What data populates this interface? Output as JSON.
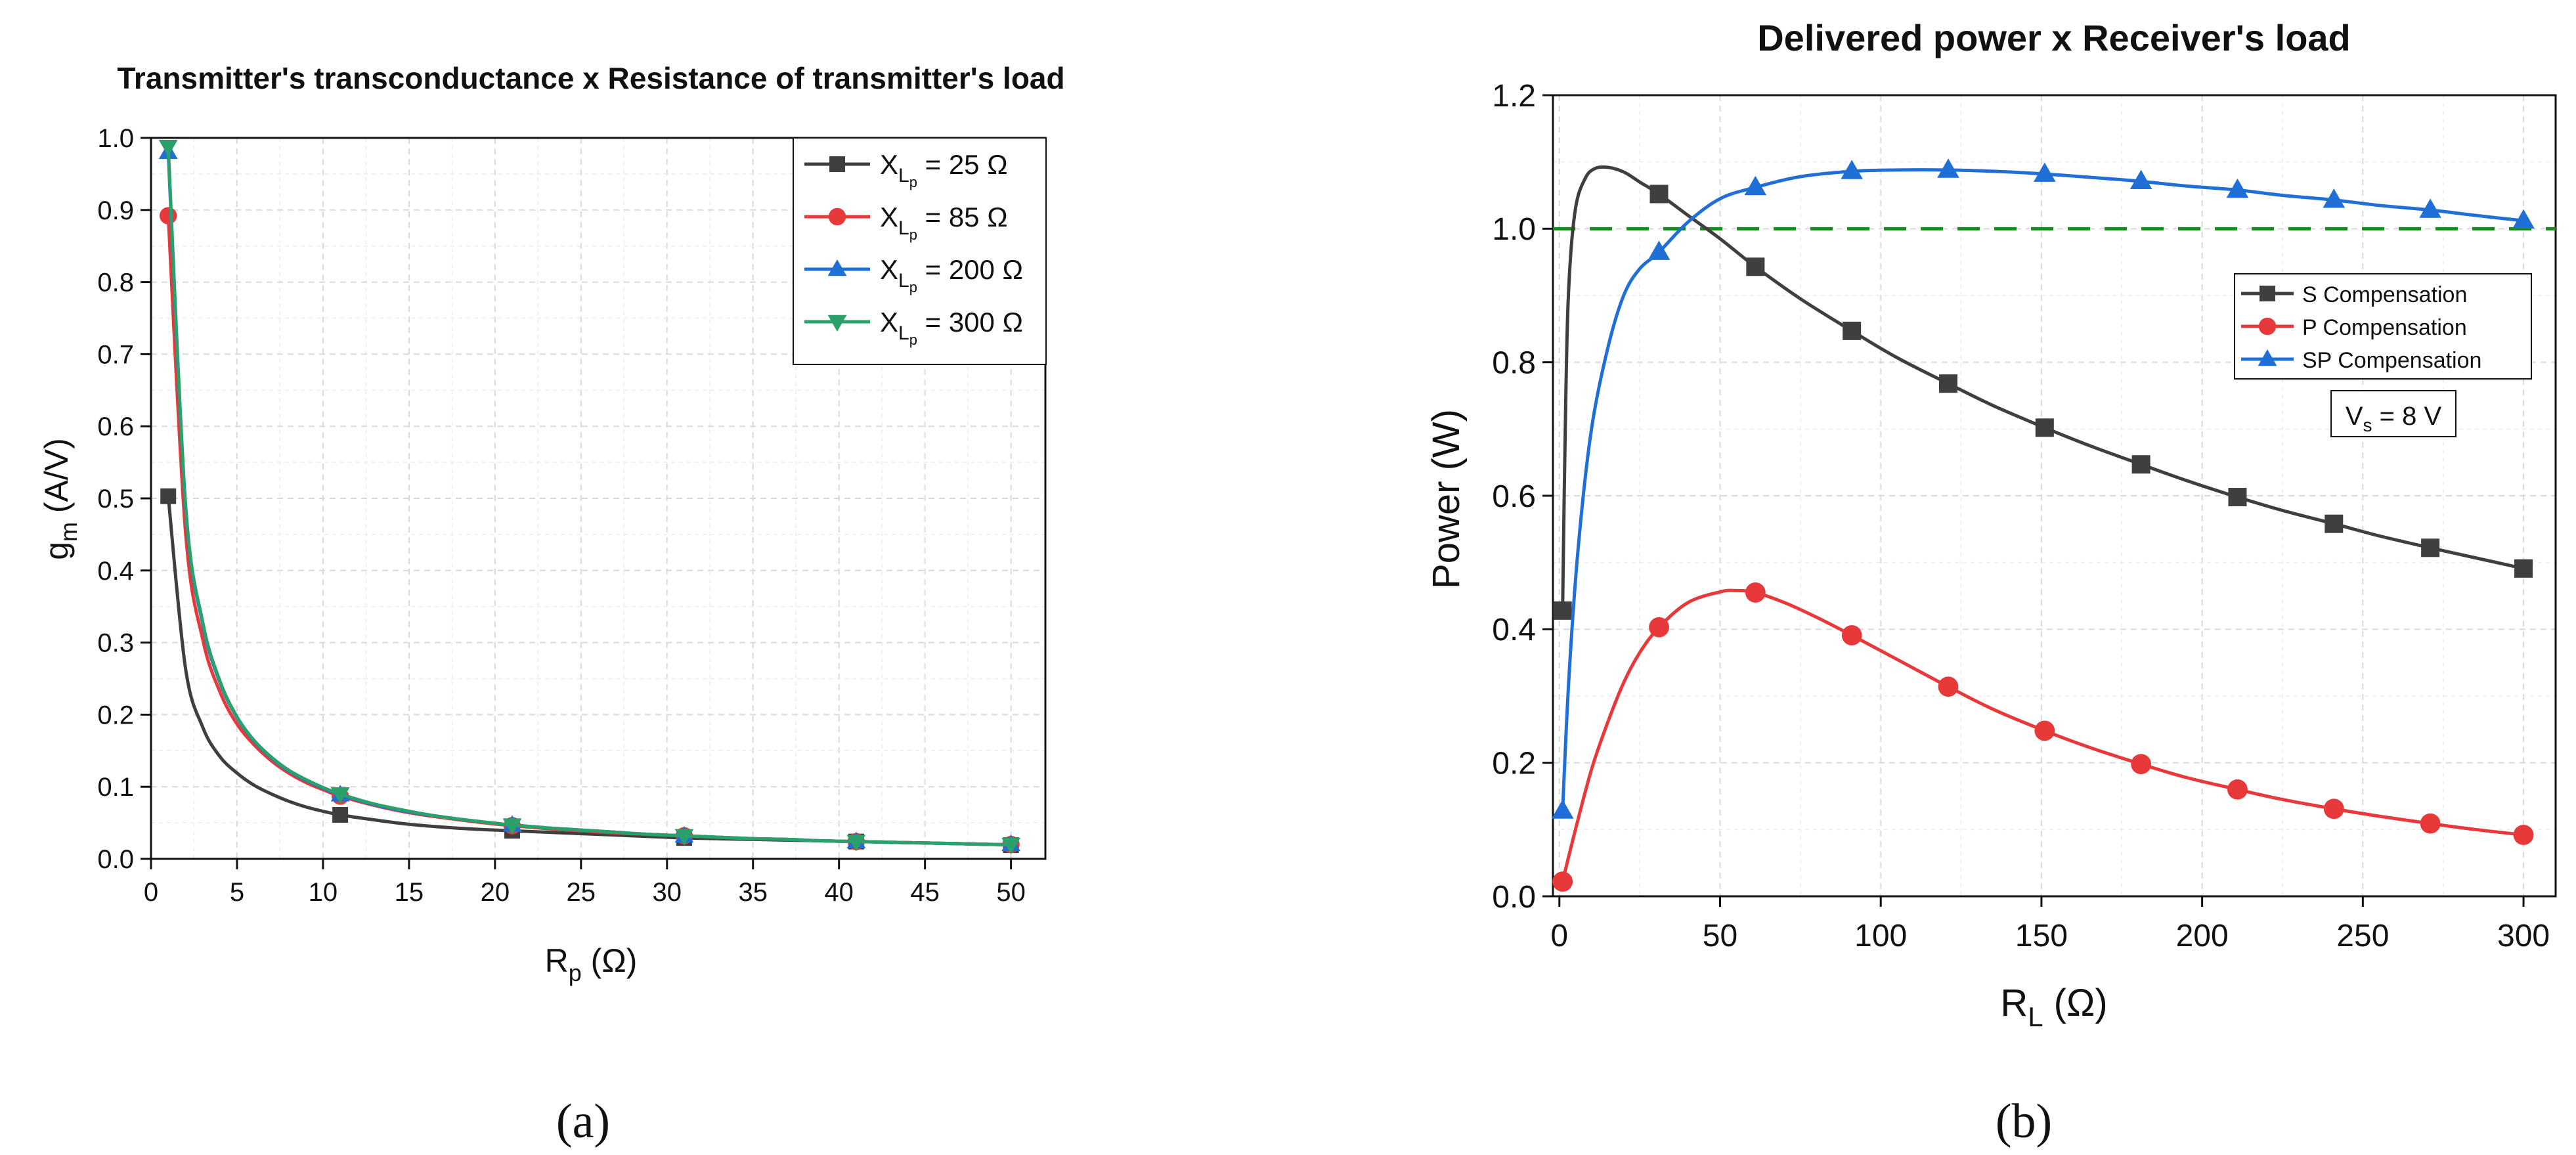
{
  "colors": {
    "series_black": "#3f3f3f",
    "series_red": "#e8393a",
    "series_blue": "#1f6fd6",
    "series_green": "#2aa06a",
    "reference_line": "#1a8a1a",
    "grid": "#d9d9d9",
    "axis": "#111111"
  },
  "chart_data": [
    {
      "panel": "a",
      "panel_label": "(a)",
      "type": "line",
      "title": "Transmitter's transconductance x Resistance of transmitter's load",
      "xlabel": {
        "main": "R",
        "sub": "p",
        "unit": " (Ω)"
      },
      "ylabel": {
        "main": "g",
        "sub": "m",
        "unit": " (A/V)"
      },
      "xlim": [
        0,
        52
      ],
      "ylim": [
        0,
        1.0
      ],
      "xticks": [
        0,
        5,
        10,
        15,
        20,
        25,
        30,
        35,
        40,
        45,
        50
      ],
      "yticks": [
        0.0,
        0.1,
        0.2,
        0.3,
        0.4,
        0.5,
        0.6,
        0.7,
        0.8,
        0.9,
        1.0
      ],
      "grid": true,
      "legend_position": "top-right",
      "series": [
        {
          "name": "X",
          "sub": "L",
          "subsub": "p",
          "value": " = 25 Ω",
          "color_key": "series_black",
          "marker": "square",
          "x": [
            1,
            2,
            3,
            4,
            5,
            6,
            7,
            8,
            9,
            10,
            11,
            13,
            15,
            17,
            19,
            21,
            23,
            25,
            27,
            29,
            31,
            33,
            35,
            37,
            39,
            41,
            43,
            45,
            47,
            49,
            50
          ],
          "y": [
            0.503,
            0.265,
            0.183,
            0.142,
            0.119,
            0.102,
            0.09,
            0.08,
            0.072,
            0.066,
            0.061,
            0.054,
            0.048,
            0.044,
            0.041,
            0.039,
            0.037,
            0.035,
            0.033,
            0.031,
            0.029,
            0.028,
            0.027,
            0.026,
            0.025,
            0.024,
            0.023,
            0.022,
            0.021,
            0.02,
            0.019
          ],
          "marker_x": [
            1,
            11,
            21,
            31,
            41,
            50
          ]
        },
        {
          "name": "X",
          "sub": "L",
          "subsub": "p",
          "value": " = 85 Ω",
          "color_key": "series_red",
          "marker": "circle",
          "x": [
            1,
            2,
            3,
            4,
            5,
            6,
            7,
            8,
            9,
            10,
            11,
            13,
            15,
            17,
            19,
            21,
            23,
            25,
            27,
            29,
            31,
            33,
            35,
            37,
            39,
            41,
            43,
            45,
            47,
            49,
            50
          ],
          "y": [
            0.892,
            0.455,
            0.305,
            0.232,
            0.187,
            0.158,
            0.136,
            0.119,
            0.106,
            0.096,
            0.087,
            0.074,
            0.064,
            0.057,
            0.051,
            0.046,
            0.042,
            0.039,
            0.036,
            0.034,
            0.032,
            0.03,
            0.028,
            0.027,
            0.025,
            0.024,
            0.023,
            0.022,
            0.021,
            0.02,
            0.02
          ],
          "marker_x": [
            1,
            11,
            21,
            31,
            41,
            50
          ]
        },
        {
          "name": "X",
          "sub": "L",
          "subsub": "p",
          "value": " = 200 Ω",
          "color_key": "series_blue",
          "marker": "triangle-up",
          "x": [
            1,
            2,
            3,
            4,
            5,
            6,
            7,
            8,
            9,
            10,
            11,
            13,
            15,
            17,
            19,
            21,
            23,
            25,
            27,
            29,
            31,
            33,
            35,
            37,
            39,
            41,
            43,
            45,
            47,
            49,
            50
          ],
          "y": [
            0.98,
            0.49,
            0.326,
            0.245,
            0.196,
            0.163,
            0.14,
            0.122,
            0.109,
            0.098,
            0.089,
            0.075,
            0.065,
            0.058,
            0.052,
            0.047,
            0.043,
            0.04,
            0.037,
            0.034,
            0.032,
            0.03,
            0.028,
            0.027,
            0.025,
            0.024,
            0.023,
            0.022,
            0.021,
            0.02,
            0.02
          ],
          "marker_x": [
            1,
            11,
            21,
            31,
            41,
            50
          ]
        },
        {
          "name": "X",
          "sub": "L",
          "subsub": "p",
          "value": " = 300 Ω",
          "color_key": "series_green",
          "marker": "triangle-down",
          "x": [
            1,
            2,
            3,
            4,
            5,
            6,
            7,
            8,
            9,
            10,
            11,
            13,
            15,
            17,
            19,
            21,
            23,
            25,
            27,
            29,
            31,
            33,
            35,
            37,
            39,
            41,
            43,
            45,
            47,
            49,
            50
          ],
          "y": [
            0.988,
            0.494,
            0.329,
            0.247,
            0.197,
            0.164,
            0.141,
            0.123,
            0.11,
            0.099,
            0.09,
            0.076,
            0.066,
            0.058,
            0.052,
            0.047,
            0.043,
            0.04,
            0.037,
            0.034,
            0.032,
            0.03,
            0.028,
            0.027,
            0.025,
            0.024,
            0.023,
            0.022,
            0.021,
            0.02,
            0.02
          ],
          "marker_x": [
            1,
            11,
            21,
            31,
            41,
            50
          ]
        }
      ]
    },
    {
      "panel": "b",
      "panel_label": "(b)",
      "type": "line",
      "title": "Delivered power x Receiver's load",
      "xlabel": {
        "main": "R",
        "sub": "L",
        "unit": " (Ω)"
      },
      "ylabel": {
        "main": "Power (W)"
      },
      "xlim": [
        -2,
        310
      ],
      "ylim": [
        0,
        1.2
      ],
      "xticks": [
        0,
        50,
        100,
        150,
        200,
        250,
        300
      ],
      "yticks": [
        0.0,
        0.2,
        0.4,
        0.6,
        0.8,
        1.0,
        1.2
      ],
      "grid": true,
      "legend_position": "center-right",
      "reference_line": {
        "y": 1.0,
        "style": "dashed",
        "color_key": "reference_line"
      },
      "annotation": {
        "main": "V",
        "sub": "s",
        "value": " = 8 V"
      },
      "series": [
        {
          "name": "S Compensation",
          "color_key": "series_black",
          "marker": "square",
          "x": [
            1,
            2,
            3,
            5,
            8,
            11,
            15,
            20,
            25,
            31,
            40,
            50,
            61,
            75,
            91,
            105,
            121,
            135,
            151,
            165,
            181,
            195,
            211,
            225,
            241,
            255,
            271,
            285,
            300
          ],
          "y": [
            0.428,
            0.75,
            0.92,
            1.03,
            1.075,
            1.09,
            1.092,
            1.085,
            1.07,
            1.052,
            1.02,
            0.985,
            0.943,
            0.895,
            0.847,
            0.807,
            0.768,
            0.735,
            0.702,
            0.675,
            0.647,
            0.623,
            0.598,
            0.578,
            0.558,
            0.54,
            0.522,
            0.507,
            0.491
          ],
          "marker_x": [
            1,
            31,
            61,
            91,
            121,
            151,
            181,
            211,
            241,
            271,
            300
          ]
        },
        {
          "name": "P Compensation",
          "color_key": "series_red",
          "marker": "circle",
          "x": [
            1,
            5,
            10,
            15,
            20,
            25,
            31,
            40,
            50,
            55,
            61,
            70,
            80,
            91,
            105,
            121,
            135,
            151,
            165,
            181,
            195,
            211,
            225,
            241,
            255,
            271,
            285,
            300
          ],
          "y": [
            0.022,
            0.1,
            0.19,
            0.26,
            0.32,
            0.365,
            0.403,
            0.44,
            0.456,
            0.458,
            0.455,
            0.44,
            0.418,
            0.391,
            0.355,
            0.314,
            0.28,
            0.248,
            0.223,
            0.198,
            0.178,
            0.16,
            0.145,
            0.131,
            0.12,
            0.109,
            0.1,
            0.092
          ],
          "marker_x": [
            1,
            31,
            61,
            91,
            121,
            151,
            181,
            211,
            241,
            271,
            300
          ]
        },
        {
          "name": "SP Compensation",
          "color_key": "series_blue",
          "marker": "triangle-up",
          "x": [
            1,
            3,
            6,
            10,
            15,
            20,
            25,
            31,
            40,
            50,
            61,
            75,
            91,
            105,
            121,
            135,
            151,
            165,
            181,
            195,
            211,
            225,
            241,
            255,
            271,
            285,
            300
          ],
          "y": [
            0.128,
            0.33,
            0.53,
            0.7,
            0.82,
            0.9,
            0.94,
            0.965,
            1.01,
            1.045,
            1.062,
            1.078,
            1.086,
            1.088,
            1.088,
            1.086,
            1.082,
            1.077,
            1.071,
            1.064,
            1.058,
            1.05,
            1.043,
            1.035,
            1.028,
            1.02,
            1.012
          ],
          "marker_x": [
            1,
            31,
            61,
            91,
            121,
            151,
            181,
            211,
            241,
            271,
            300
          ]
        }
      ]
    }
  ]
}
